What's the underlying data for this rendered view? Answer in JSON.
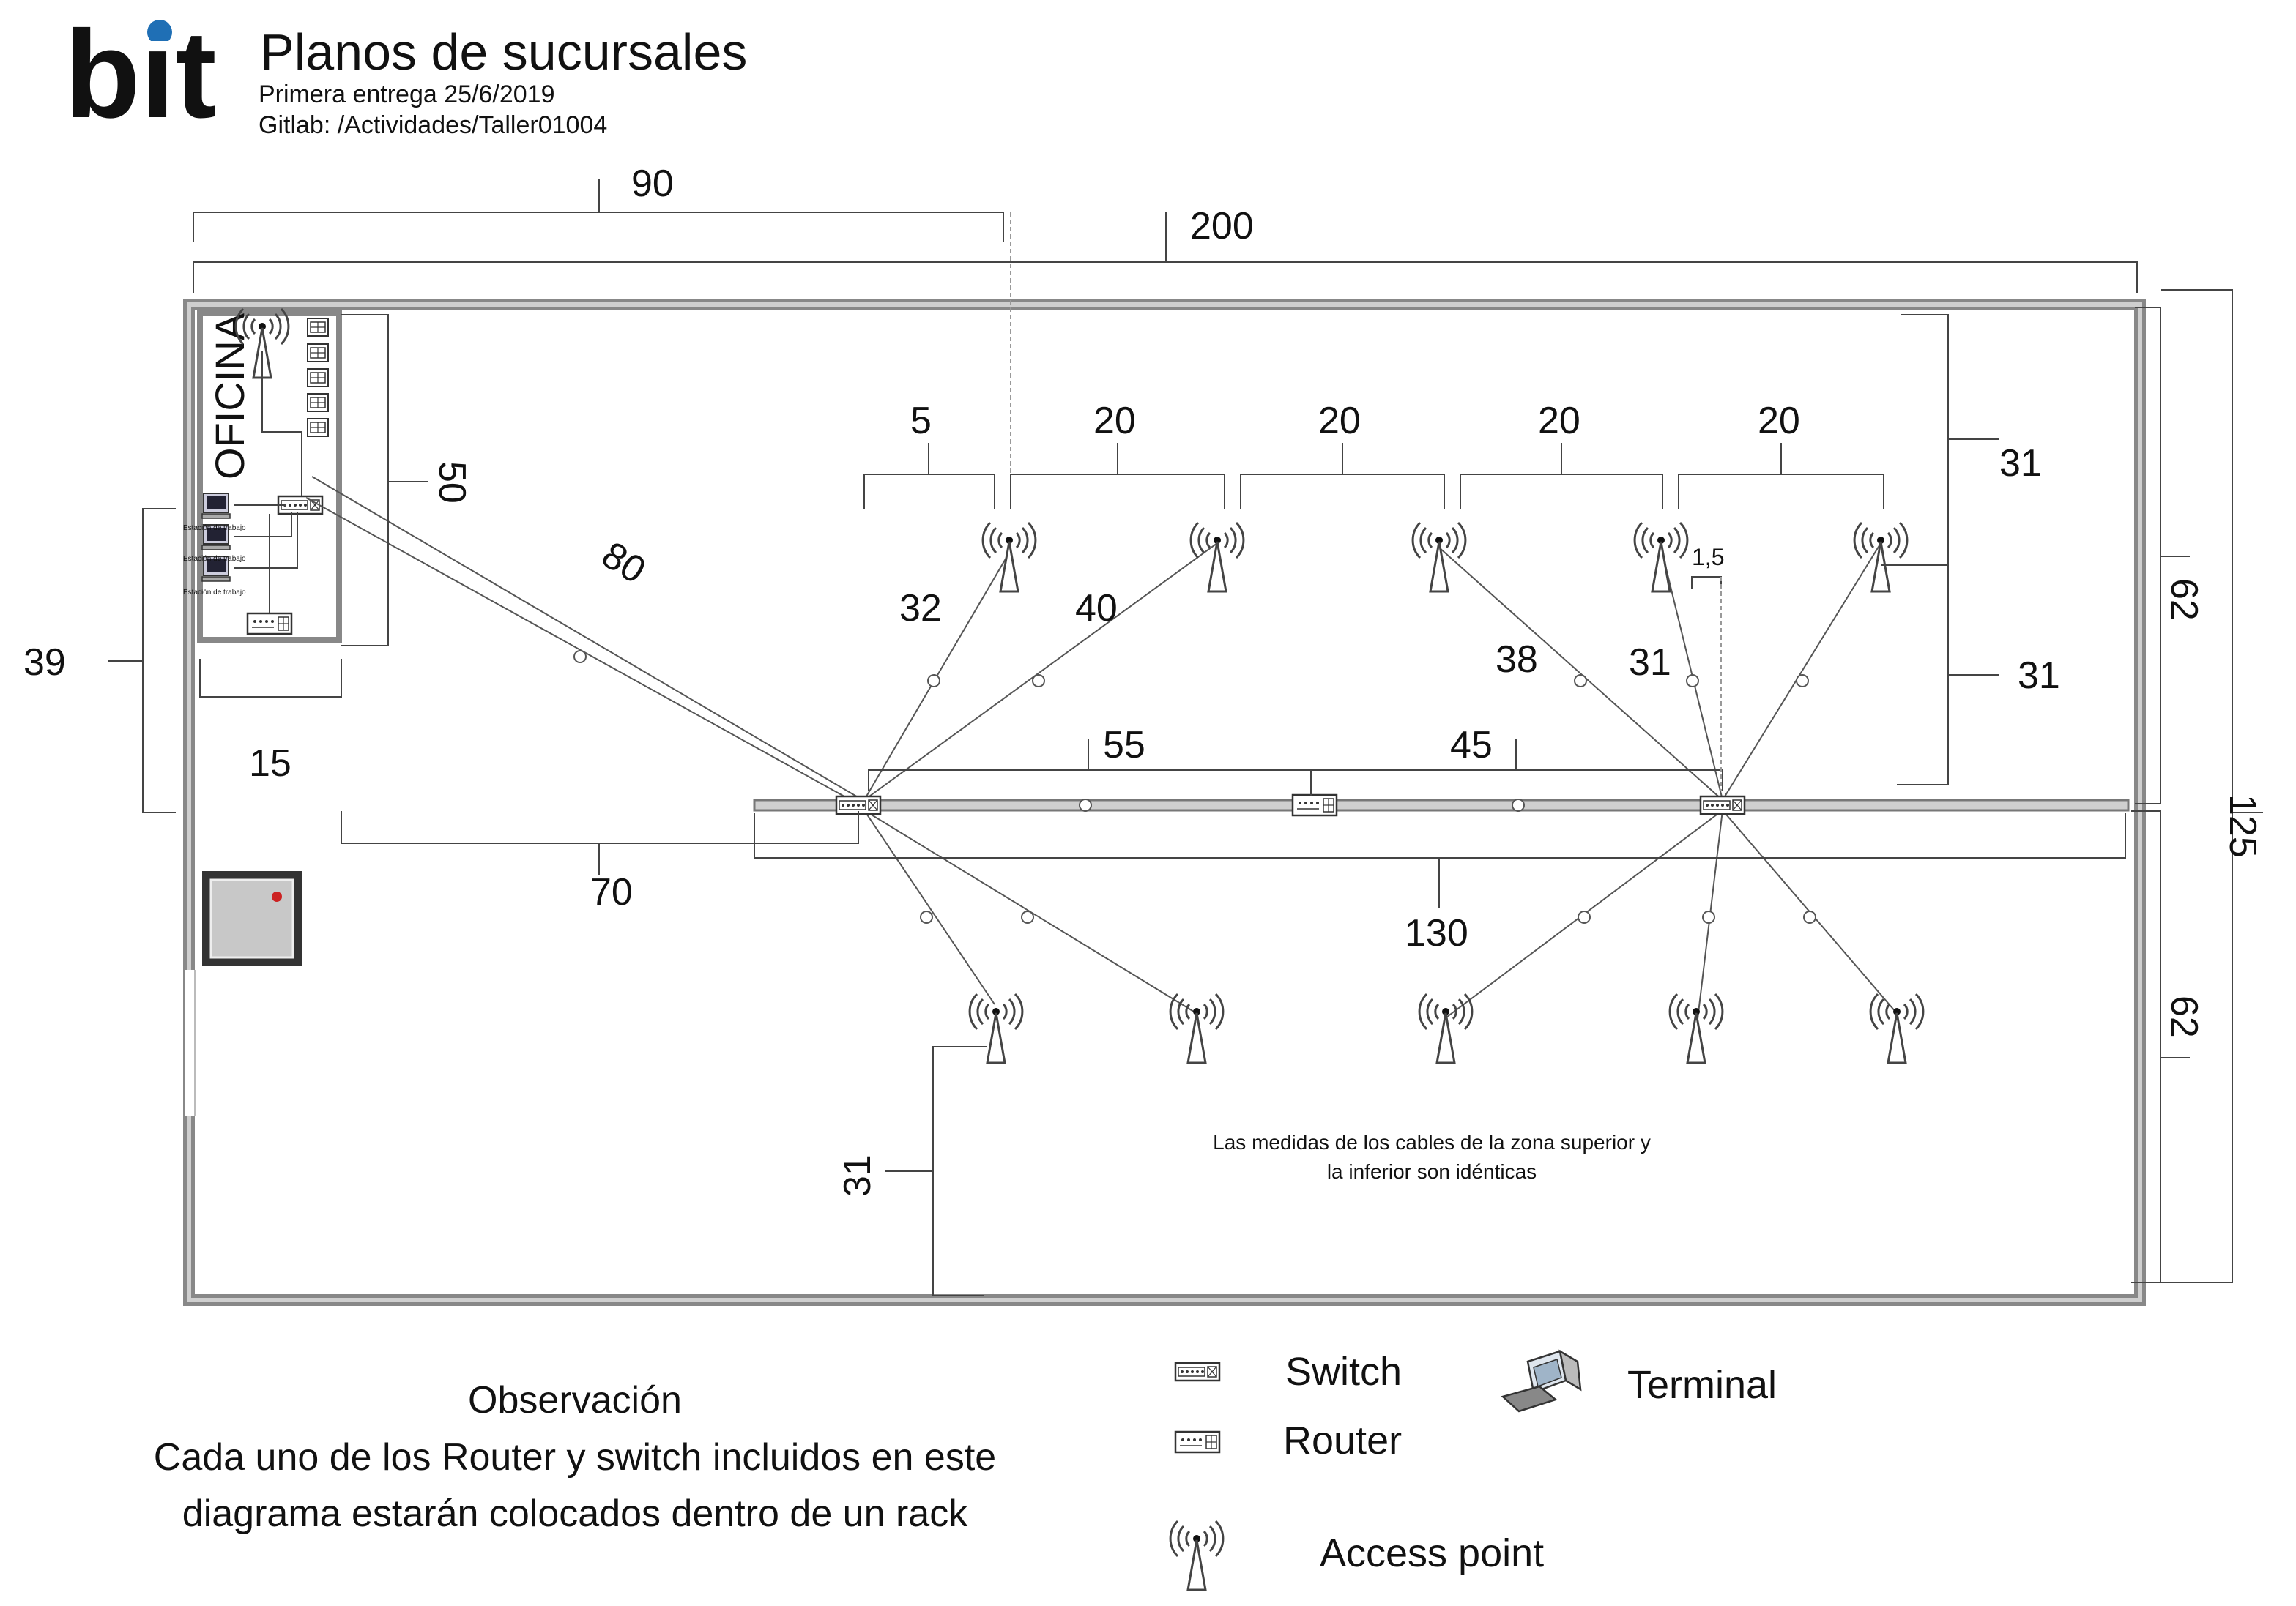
{
  "header": {
    "logo": "bit",
    "title": "Planos de sucursales",
    "subtitle_1": "Primera entrega 25/6/2019",
    "subtitle_2": "Gitlab: /Actividades/Taller01004"
  },
  "room": {
    "office_label": "OFICINA",
    "workstation_label": "Estación de trabajo"
  },
  "dimensions": {
    "d90": "90",
    "d200": "200",
    "d5": "5",
    "d20a": "20",
    "d20b": "20",
    "d20c": "20",
    "d20d": "20",
    "d31_top": "31",
    "d31_mid": "31",
    "d62_upper": "62",
    "d62_lower": "62",
    "d125": "125",
    "d50": "50",
    "d80": "80",
    "d39": "39",
    "d15": "15",
    "d70": "70",
    "d32": "32",
    "d40": "40",
    "d55": "55",
    "d45": "45",
    "d38": "38",
    "d31_cable": "31",
    "d1_5": "1,5",
    "d130": "130",
    "d31_left_bottom": "31"
  },
  "note": {
    "line1": "Las medidas de los cables de la zona superior y",
    "line2": "la inferior son idénticas"
  },
  "observation": {
    "title": "Observación",
    "line1": "Cada uno de los Router y switch incluidos en este",
    "line2": "diagrama estarán colocados dentro de un rack"
  },
  "legend": {
    "switch": "Switch",
    "router": "Router",
    "terminal": "Terminal",
    "access_point": "Access point"
  },
  "colors": {
    "logo_dot": "#1f6fb5",
    "wall": "#9a9a9a",
    "line": "#555555"
  }
}
